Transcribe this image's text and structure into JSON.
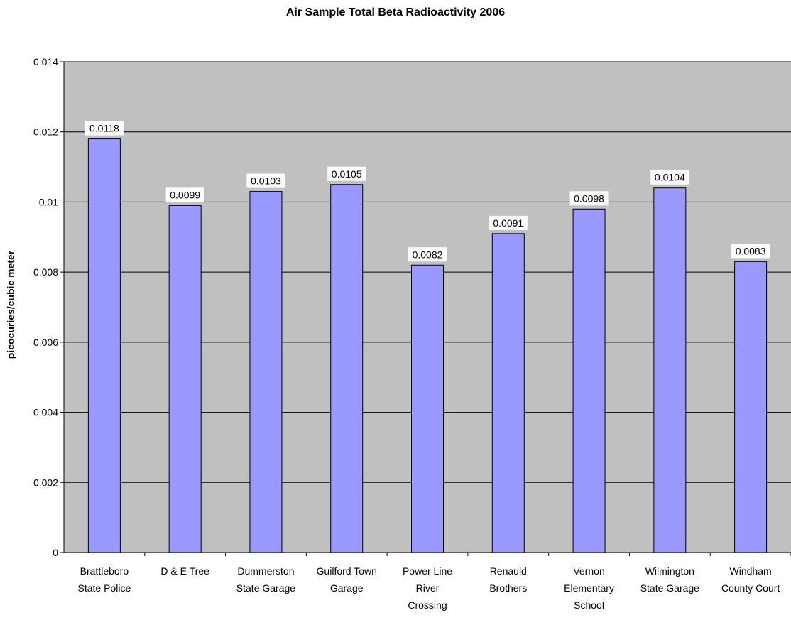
{
  "chart_data": {
    "type": "bar",
    "title": "Air Sample Total Beta Radioactivity 2006",
    "xlabel": "",
    "ylabel": "picocuries/cubic meter",
    "ylim": [
      0,
      0.014
    ],
    "yticks": [
      "0",
      "0.002",
      "0.004",
      "0.006",
      "0.008",
      "0.01",
      "0.012",
      "0.014"
    ],
    "ytick_values": [
      0,
      0.002,
      0.004,
      0.006,
      0.008,
      0.01,
      0.012,
      0.014
    ],
    "grid": true,
    "legend": "none",
    "categories": [
      [
        "Brattleboro",
        "State Police"
      ],
      [
        "D & E Tree"
      ],
      [
        "Dummerston",
        "State Garage"
      ],
      [
        "Guilford Town",
        "Garage"
      ],
      [
        "Power Line",
        "River",
        "Crossing"
      ],
      [
        "Renauld",
        "Brothers"
      ],
      [
        "Vernon",
        "Elementary",
        "School"
      ],
      [
        "Wilmington",
        "State Garage"
      ],
      [
        "Windham",
        "County Court"
      ]
    ],
    "values": [
      0.0118,
      0.0099,
      0.0103,
      0.0105,
      0.0082,
      0.0091,
      0.0098,
      0.0104,
      0.0083
    ],
    "data_labels": [
      "0.0118",
      "0.0099",
      "0.0103",
      "0.0105",
      "0.0082",
      "0.0091",
      "0.0098",
      "0.0104",
      "0.0083"
    ],
    "colors": {
      "plot_background": "#c0c0c0",
      "bar_fill": "#9999ff",
      "bar_stroke": "#000000",
      "gridline": "#000000",
      "label_background": "#ffffff"
    }
  }
}
